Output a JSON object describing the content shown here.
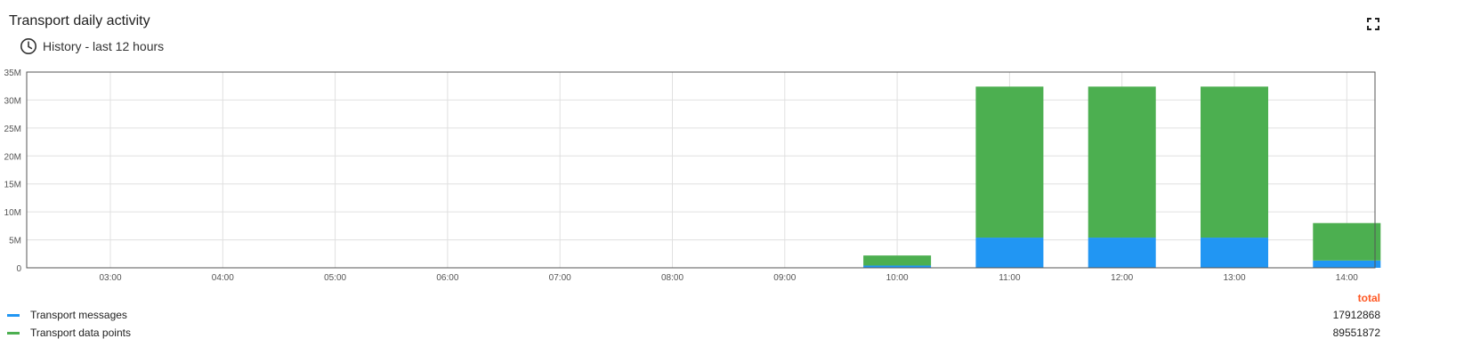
{
  "widget": {
    "title": "Transport daily activity",
    "subtitle": "History - last 12 hours",
    "icons": {
      "history": "clock-icon",
      "fullscreen": "fullscreen-icon"
    }
  },
  "chart_data": {
    "type": "bar",
    "stacked": true,
    "categories": [
      "03:00",
      "04:00",
      "05:00",
      "06:00",
      "07:00",
      "08:00",
      "09:00",
      "10:00",
      "11:00",
      "12:00",
      "13:00",
      "14:00"
    ],
    "series": [
      {
        "name": "Transport messages",
        "color": "#2196f3",
        "values": [
          0,
          0,
          0,
          0,
          0,
          0,
          0,
          400000,
          5400000,
          5400000,
          5400000,
          1300000
        ]
      },
      {
        "name": "Transport data points",
        "color": "#4caf50",
        "values": [
          0,
          0,
          0,
          0,
          0,
          0,
          0,
          1800000,
          27000000,
          27000000,
          27000000,
          6700000
        ]
      }
    ],
    "ylim": [
      0,
      35000000
    ],
    "yticks": [
      "0",
      "5M",
      "10M",
      "15M",
      "20M",
      "25M",
      "30M",
      "35M"
    ],
    "grid": true,
    "legend_placement": "bottom"
  },
  "legend": {
    "header": "total",
    "items": [
      {
        "label": "Transport messages",
        "total": "17912868",
        "color": "#2196f3"
      },
      {
        "label": "Transport data points",
        "total": "89551872",
        "color": "#4caf50"
      }
    ]
  }
}
